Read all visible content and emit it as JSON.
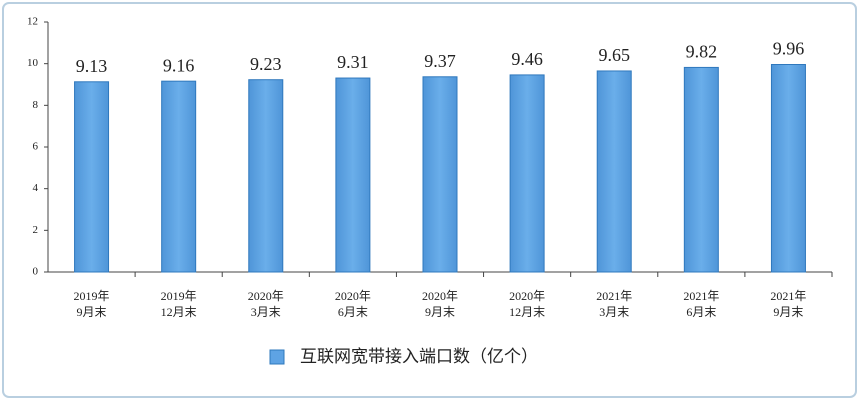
{
  "chart_data": {
    "type": "bar",
    "categories": [
      "2019年\n9月末",
      "2019年\n12月末",
      "2020年\n3月末",
      "2020年\n6月末",
      "2020年\n9月末",
      "2020年\n12月末",
      "2021年\n3月末",
      "2021年\n6月末",
      "2021年\n9月末"
    ],
    "series": [
      {
        "name": "互联网宽带接入端口数（亿个）",
        "color": "#5ea3e4",
        "values": [
          9.13,
          9.16,
          9.23,
          9.31,
          9.37,
          9.46,
          9.65,
          9.82,
          9.96
        ]
      }
    ],
    "ylim": [
      0,
      12
    ],
    "yticks": [
      0,
      2,
      4,
      6,
      8,
      10,
      12
    ],
    "grid": false,
    "legend": "bottom"
  }
}
